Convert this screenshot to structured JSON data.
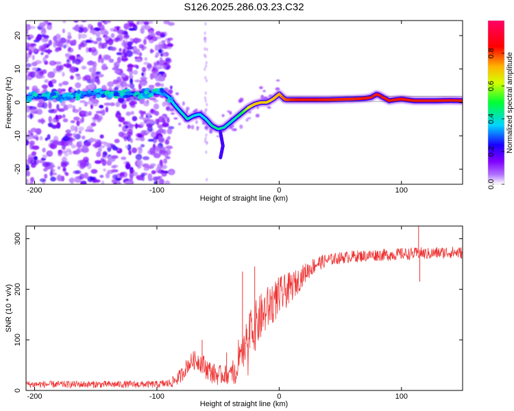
{
  "figure": {
    "title": "S126.2025.286.03.23.C32"
  },
  "chart_data": [
    {
      "type": "heatmap",
      "name": "spectrogram",
      "xlabel": "Height of straight line (km)",
      "ylabel": "Frequency (Hz)",
      "xlim": [
        -207,
        150
      ],
      "ylim": [
        -24.5,
        24.5
      ],
      "xticks": [
        -200,
        -100,
        0,
        100
      ],
      "yticks": [
        -20,
        -10,
        0,
        10,
        20
      ],
      "colorbar": {
        "label": "Normalized spectral amplitude",
        "range": [
          0.0,
          1.0
        ],
        "ticks": [
          "0.0",
          "0.2",
          "0.4",
          "0.6",
          "0.8"
        ],
        "tick_values": [
          0.0,
          0.2,
          0.4,
          0.6,
          0.8
        ],
        "colors": [
          "#ffffff",
          "#9b00ff",
          "#1a00ff",
          "#00d5ff",
          "#00ff33",
          "#d4ff00",
          "#ffb300",
          "#ff0000",
          "#ff0040"
        ]
      },
      "track": {
        "x": [
          -207,
          -190,
          -175,
          -160,
          -145,
          -130,
          -115,
          -100,
          -95,
          -90,
          -85,
          -80,
          -75,
          -70,
          -65,
          -60,
          -55,
          -50,
          -45,
          -40,
          -35,
          -30,
          -25,
          -20,
          -15,
          -10,
          -5,
          0,
          5,
          20,
          40,
          60,
          70,
          75,
          80,
          85,
          90,
          95,
          100,
          110,
          120,
          130,
          140,
          150
        ],
        "y": [
          1.5,
          2.0,
          1.5,
          2.5,
          3.0,
          2.5,
          2.5,
          3.0,
          3.0,
          1.5,
          -1.0,
          -3.0,
          -5.0,
          -4.0,
          -3.5,
          -5.0,
          -7.0,
          -8.0,
          -7.5,
          -6.0,
          -4.5,
          -3.0,
          -1.5,
          -0.5,
          0.0,
          0.0,
          1.0,
          2.5,
          0.8,
          0.8,
          0.8,
          1.0,
          1.2,
          1.5,
          2.5,
          1.5,
          0.5,
          0.8,
          1.0,
          0.5,
          0.5,
          0.5,
          0.6,
          0.5
        ],
        "amplitude": [
          0.3,
          0.3,
          0.35,
          0.3,
          0.35,
          0.35,
          0.3,
          0.3,
          0.32,
          0.35,
          0.38,
          0.4,
          0.42,
          0.38,
          0.36,
          0.38,
          0.42,
          0.45,
          0.42,
          0.4,
          0.42,
          0.5,
          0.62,
          0.7,
          0.7,
          0.68,
          0.7,
          0.72,
          0.78,
          0.86,
          0.82,
          0.8,
          0.84,
          0.9,
          0.92,
          0.88,
          0.85,
          0.83,
          0.86,
          0.84,
          0.92,
          0.9,
          0.88,
          0.86
        ]
      },
      "noise_region_xmax": -92
    },
    {
      "type": "line",
      "name": "snr",
      "xlabel": "Height of straight line (km)",
      "ylabel": "SNR (10 * v/v)",
      "xlim": [
        -207,
        150
      ],
      "ylim": [
        0,
        325
      ],
      "xticks": [
        -200,
        -100,
        0,
        100
      ],
      "yticks": [
        0,
        100,
        200,
        300
      ],
      "color": "#ee3333",
      "series_envelope": {
        "x": [
          -207,
          -180,
          -150,
          -120,
          -100,
          -90,
          -85,
          -80,
          -75,
          -70,
          -65,
          -60,
          -55,
          -50,
          -45,
          -40,
          -35,
          -30,
          -25,
          -20,
          -15,
          -10,
          -5,
          0,
          5,
          10,
          15,
          20,
          25,
          30,
          40,
          50,
          60,
          70,
          80,
          90,
          100,
          110,
          115,
          120,
          130,
          140,
          150
        ],
        "y": [
          12,
          12,
          12,
          12,
          12,
          14,
          20,
          30,
          50,
          60,
          58,
          45,
          35,
          30,
          32,
          30,
          40,
          70,
          110,
          125,
          145,
          160,
          175,
          185,
          195,
          205,
          215,
          230,
          240,
          250,
          258,
          262,
          265,
          266,
          268,
          268,
          270,
          270,
          272,
          270,
          272,
          273,
          272
        ]
      },
      "noise_amplitude": {
        "x": [
          -207,
          -100,
          -90,
          -80,
          -60,
          -40,
          -30,
          -20,
          0,
          20,
          40,
          150
        ],
        "y": [
          7,
          7,
          9,
          15,
          22,
          18,
          40,
          50,
          40,
          20,
          12,
          12
        ]
      },
      "spikes": [
        {
          "x": -63,
          "y": 100
        },
        {
          "x": -43,
          "y": 75
        },
        {
          "x": -30,
          "y": 235
        },
        {
          "x": -20,
          "y": 245
        },
        {
          "x": 114,
          "y": 325
        },
        {
          "x": 115,
          "y": 215
        }
      ]
    }
  ]
}
